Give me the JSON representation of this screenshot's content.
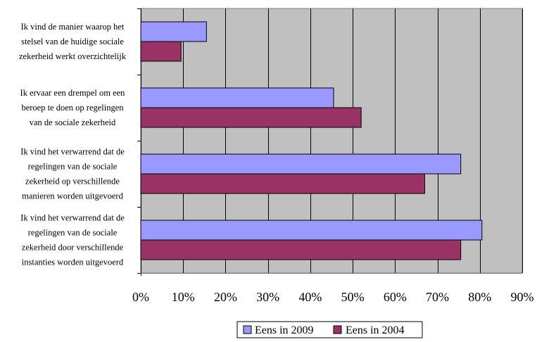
{
  "chart_data": {
    "type": "bar",
    "orientation": "horizontal",
    "categories": [
      "Ik vind de manier waarop het stelsel van de huidige sociale zekerheid werkt overzichtelijk",
      "Ik ervaar een drempel om een beroep te doen op regelingen van de sociale zekerheid",
      "Ik vind het verwarrend dat de regelingen van de sociale zekerheid op verschillende manieren worden uitgevoerd",
      "Ik vind het verwarrend dat de regelingen van de sociale zekerheid door verschillende instanties worden uitgevoerd"
    ],
    "category_label_lines": [
      [
        "Ik vind de manier waarop het",
        "stelsel van de huidige sociale",
        "zekerheid werkt overzichtelijk"
      ],
      [
        "Ik ervaar een drempel om een",
        "beroep te doen op regelingen",
        "van de sociale zekerheid"
      ],
      [
        "Ik vind het verwarrend dat de",
        "regelingen van de sociale",
        "zekerheid op verschillende",
        "manieren worden uitgevoerd"
      ],
      [
        "Ik vind het verwarrend dat de",
        "regelingen van de sociale",
        "zekerheid door verschillende",
        "instanties worden uitgevoerd"
      ]
    ],
    "series": [
      {
        "name": "Eens in 2009",
        "values": [
          15.5,
          45.5,
          75.5,
          80.5
        ],
        "color": "#9999ff"
      },
      {
        "name": "Eens in 2004",
        "values": [
          9.5,
          52,
          67,
          75.5
        ],
        "color": "#993366"
      }
    ],
    "xlim": [
      0,
      90
    ],
    "x_ticks": [
      0,
      10,
      20,
      30,
      40,
      50,
      60,
      70,
      80,
      90
    ],
    "x_tick_labels": [
      "0%",
      "10%",
      "20%",
      "30%",
      "40%",
      "50%",
      "60%",
      "70%",
      "80%",
      "90%"
    ],
    "plot_background": "#c0c0c0",
    "grid": true,
    "legend_position": "bottom",
    "title": "",
    "xlabel": "",
    "ylabel": ""
  }
}
